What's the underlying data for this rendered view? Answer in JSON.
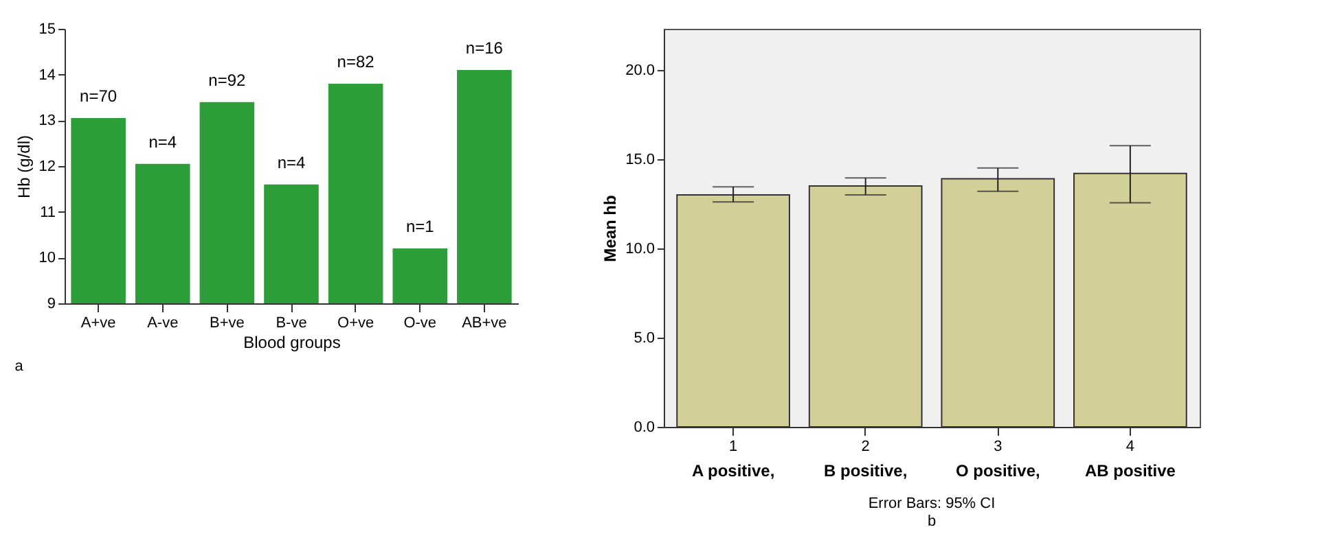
{
  "chart_data": [
    {
      "type": "bar",
      "xlabel": "Blood groups",
      "ylabel": "Hb (g/dl)",
      "categories": [
        "A+ve",
        "A-ve",
        "B+ve",
        "B-ve",
        "O+ve",
        "O-ve",
        "AB+ve"
      ],
      "series": [
        {
          "color": "#2e9e3a",
          "values": [
            13.05,
            12.05,
            13.4,
            11.6,
            13.8,
            10.2,
            14.1
          ]
        }
      ],
      "ylim": [
        9,
        15
      ],
      "yticks": [
        9,
        10,
        11,
        12,
        13,
        14,
        15
      ],
      "grid": false,
      "annotations": [
        {
          "text": "n=70",
          "x": "A+ve",
          "y": 13.05
        },
        {
          "text": "n=4",
          "x": "A-ve",
          "y": 12.05
        },
        {
          "text": "n=92",
          "x": "B+ve",
          "y": 13.4
        },
        {
          "text": "n=4",
          "x": "B-ve",
          "y": 11.6
        },
        {
          "text": "n=82",
          "x": "O+ve",
          "y": 13.8
        },
        {
          "text": "n=1",
          "x": "O-ve",
          "y": 10.2
        },
        {
          "text": "n=16",
          "x": "AB+ve",
          "y": 14.1
        },
        "a"
      ]
    },
    {
      "type": "bar",
      "ylabel": "Mean hb",
      "categories": [
        "1",
        "2",
        "3",
        "4"
      ],
      "series": [
        {
          "color": "#d3cf98",
          "values": [
            13.0,
            13.5,
            13.9,
            14.2
          ],
          "errors": [
            [
              12.6,
              13.45
            ],
            [
              13.0,
              13.95
            ],
            [
              13.2,
              14.5
            ],
            [
              12.55,
              15.75
            ]
          ]
        }
      ],
      "ylim": [
        0,
        22.3
      ],
      "yticks": [
        {
          "value": 0,
          "label": "0.0"
        },
        {
          "value": 5,
          "label": "5.0"
        },
        {
          "value": 10,
          "label": "10.0"
        },
        {
          "value": 15,
          "label": "15.0"
        },
        {
          "value": 20,
          "label": "20.0"
        }
      ],
      "grid": false,
      "annotations": [
        "A positive,",
        "B positive,",
        "O positive,",
        "AB positive",
        "Error Bars: 95% CI",
        "b"
      ]
    }
  ]
}
